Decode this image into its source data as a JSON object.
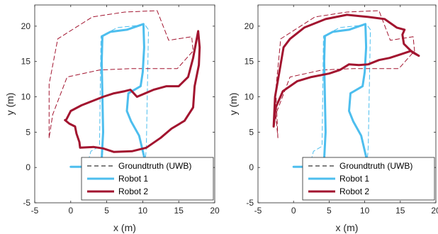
{
  "colors": {
    "robot1": "#4DBEEE",
    "robot2": "#A2142F",
    "groundtruth_robot1": "#4DBEEE",
    "groundtruth_robot2": "#A2142F",
    "axis": "#262626"
  },
  "legend": {
    "position": "bottom-right",
    "entries": [
      "Groundtruth (UWB)",
      "Robot 1",
      "Robot 2"
    ]
  },
  "chart_data": [
    {
      "type": "line",
      "xlabel": "x (m)",
      "ylabel": "y (m)",
      "xlim": [
        -5,
        20
      ],
      "ylim": [
        -5,
        23
      ],
      "xticks": [
        -5,
        0,
        5,
        10,
        15,
        20
      ],
      "yticks": [
        -5,
        0,
        5,
        10,
        15,
        20
      ],
      "grid": false,
      "series": [
        {
          "name": "Groundtruth (UWB)",
          "role": "groundtruth-robot1",
          "style": "dashed",
          "color": "#4DBEEE",
          "points": [
            [
              2.2,
              0.0
            ],
            [
              2.8,
              2.3
            ],
            [
              4.0,
              3.0
            ],
            [
              4.2,
              18.6
            ],
            [
              6.5,
              19.8
            ],
            [
              10.3,
              20.2
            ],
            [
              10.8,
              19.5
            ],
            [
              10.5,
              3.0
            ],
            [
              10.3,
              0.0
            ]
          ]
        },
        {
          "role": "groundtruth-robot2",
          "style": "dashed",
          "color": "#A2142F",
          "points": [
            [
              -3.0,
              4.2
            ],
            [
              -3.0,
              11.8
            ],
            [
              -1.8,
              18.2
            ],
            [
              3.0,
              21.3
            ],
            [
              7.5,
              22.0
            ],
            [
              12.0,
              22.2
            ],
            [
              13.6,
              18.0
            ],
            [
              16.8,
              18.5
            ],
            [
              17.0,
              16.5
            ],
            [
              14.8,
              14.0
            ],
            [
              8.5,
              14.0
            ],
            [
              4.0,
              13.8
            ],
            [
              -0.5,
              12.8
            ],
            [
              -2.5,
              7.5
            ],
            [
              -3.0,
              4.2
            ]
          ]
        },
        {
          "name": "Robot 1",
          "color": "#4DBEEE",
          "style": "solid",
          "points": [
            [
              0.0,
              0.1
            ],
            [
              2.0,
              0.1
            ],
            [
              3.4,
              0.3
            ],
            [
              4.3,
              1.2
            ],
            [
              4.5,
              5.0
            ],
            [
              4.4,
              10.0
            ],
            [
              4.3,
              15.0
            ],
            [
              4.4,
              18.6
            ],
            [
              5.5,
              19.2
            ],
            [
              7.8,
              19.5
            ],
            [
              10.1,
              20.3
            ],
            [
              10.2,
              17.0
            ],
            [
              10.0,
              13.5
            ],
            [
              9.7,
              11.5
            ],
            [
              8.0,
              10.5
            ],
            [
              7.8,
              8.0
            ],
            [
              8.4,
              6.5
            ],
            [
              9.5,
              4.5
            ],
            [
              10.2,
              1.5
            ],
            [
              10.4,
              0.0
            ]
          ]
        },
        {
          "name": "Robot 2",
          "color": "#A2142F",
          "style": "solid",
          "points": [
            [
              -0.8,
              6.7
            ],
            [
              -0.2,
              6.2
            ],
            [
              0.6,
              5.8
            ],
            [
              0.8,
              4.8
            ],
            [
              1.2,
              3.6
            ],
            [
              1.3,
              2.8
            ],
            [
              3.2,
              2.9
            ],
            [
              4.5,
              2.7
            ],
            [
              6.0,
              2.2
            ],
            [
              8.5,
              2.3
            ],
            [
              10.5,
              2.8
            ],
            [
              12.5,
              4.2
            ],
            [
              14.0,
              5.5
            ],
            [
              15.8,
              6.6
            ],
            [
              17.0,
              8.5
            ],
            [
              17.2,
              11.5
            ],
            [
              17.8,
              14.5
            ],
            [
              17.9,
              17.0
            ],
            [
              17.7,
              19.3
            ],
            [
              17.0,
              15.5
            ],
            [
              16.3,
              12.8
            ],
            [
              15.0,
              11.5
            ],
            [
              13.3,
              11.5
            ],
            [
              11.5,
              11.0
            ],
            [
              9.2,
              10.0
            ],
            [
              8.3,
              11.0
            ],
            [
              7.5,
              10.8
            ],
            [
              6.0,
              10.5
            ],
            [
              4.5,
              10.0
            ],
            [
              3.0,
              9.4
            ],
            [
              1.5,
              8.8
            ],
            [
              0.0,
              8.0
            ],
            [
              -0.6,
              6.8
            ]
          ]
        }
      ]
    },
    {
      "type": "line",
      "xlabel": "x (m)",
      "ylabel": "y (m)",
      "xlim": [
        -5,
        20
      ],
      "ylim": [
        -5,
        23
      ],
      "xticks": [
        -5,
        0,
        5,
        10,
        15,
        20
      ],
      "yticks": [
        -5,
        0,
        5,
        10,
        15,
        20
      ],
      "grid": false,
      "series": [
        {
          "name": "Groundtruth (UWB)",
          "role": "groundtruth-robot1",
          "style": "dashed",
          "color": "#4DBEEE",
          "points": [
            [
              2.2,
              0.0
            ],
            [
              2.8,
              2.3
            ],
            [
              4.0,
              3.0
            ],
            [
              4.2,
              18.6
            ],
            [
              6.5,
              19.8
            ],
            [
              10.3,
              20.2
            ],
            [
              10.8,
              19.5
            ],
            [
              10.5,
              3.0
            ],
            [
              10.3,
              0.0
            ]
          ]
        },
        {
          "role": "groundtruth-robot2",
          "style": "dashed",
          "color": "#A2142F",
          "points": [
            [
              -2.2,
              4.2
            ],
            [
              -2.5,
              11.0
            ],
            [
              -1.8,
              18.2
            ],
            [
              3.0,
              21.3
            ],
            [
              7.5,
              22.0
            ],
            [
              12.0,
              22.2
            ],
            [
              13.6,
              18.0
            ],
            [
              16.8,
              18.5
            ],
            [
              17.0,
              16.5
            ],
            [
              14.8,
              14.0
            ],
            [
              8.5,
              14.0
            ],
            [
              4.0,
              13.8
            ],
            [
              -0.5,
              12.8
            ],
            [
              -2.5,
              7.5
            ],
            [
              -2.2,
              4.2
            ]
          ]
        },
        {
          "name": "Robot 1",
          "color": "#4DBEEE",
          "style": "solid",
          "points": [
            [
              0.0,
              0.1
            ],
            [
              2.0,
              0.1
            ],
            [
              3.4,
              0.3
            ],
            [
              4.3,
              1.2
            ],
            [
              4.5,
              5.0
            ],
            [
              4.4,
              10.0
            ],
            [
              4.3,
              15.0
            ],
            [
              4.4,
              18.6
            ],
            [
              5.5,
              19.2
            ],
            [
              7.8,
              19.5
            ],
            [
              10.1,
              20.3
            ],
            [
              10.2,
              17.0
            ],
            [
              10.0,
              13.5
            ],
            [
              9.7,
              11.5
            ],
            [
              8.0,
              10.5
            ],
            [
              7.8,
              8.0
            ],
            [
              8.4,
              6.5
            ],
            [
              9.5,
              4.5
            ],
            [
              10.2,
              1.5
            ],
            [
              10.4,
              0.0
            ]
          ]
        },
        {
          "name": "Robot 2",
          "color": "#A2142F",
          "style": "solid",
          "points": [
            [
              -2.8,
              5.8
            ],
            [
              -2.5,
              8.5
            ],
            [
              -1.5,
              10.8
            ],
            [
              0.5,
              12.2
            ],
            [
              2.5,
              12.8
            ],
            [
              5.0,
              13.3
            ],
            [
              6.5,
              13.8
            ],
            [
              7.8,
              14.6
            ],
            [
              9.2,
              14.5
            ],
            [
              10.5,
              14.6
            ],
            [
              12.0,
              15.2
            ],
            [
              13.5,
              15.5
            ],
            [
              15.0,
              16.0
            ],
            [
              16.5,
              16.5
            ],
            [
              17.6,
              15.8
            ],
            [
              16.7,
              16.3
            ],
            [
              15.5,
              17.5
            ],
            [
              15.3,
              18.8
            ],
            [
              15.6,
              19.5
            ],
            [
              14.5,
              19.8
            ],
            [
              12.8,
              21.0
            ],
            [
              10.5,
              21.3
            ],
            [
              7.5,
              21.6
            ],
            [
              4.5,
              21.0
            ],
            [
              1.5,
              19.8
            ],
            [
              -0.5,
              18.2
            ],
            [
              -1.4,
              17.0
            ],
            [
              -2.0,
              13.5
            ],
            [
              -2.6,
              10.0
            ],
            [
              -2.8,
              5.8
            ]
          ]
        }
      ]
    }
  ]
}
